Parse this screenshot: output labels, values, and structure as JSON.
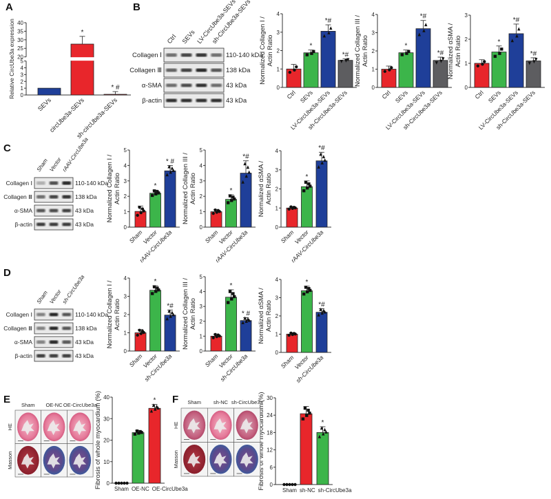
{
  "panels": {
    "A": "A",
    "B": "B",
    "C": "C",
    "D": "D",
    "E": "E",
    "F": "F"
  },
  "colors": {
    "red": "#e8262b",
    "green": "#3cb54a",
    "blue": "#1f3f99",
    "gray": "#5d5d60"
  },
  "blots": {
    "B": {
      "columns": [
        "Ctrl",
        "SEVs",
        "LV-CircUbe3a-SEVs",
        "sh-CircUbe3a-SEVs"
      ],
      "rows": [
        {
          "label": "Collagen Ⅰ",
          "kda": "110-140 kDa"
        },
        {
          "label": "Collagen Ⅲ",
          "kda": "138 kDa"
        },
        {
          "label": "α-SMA",
          "kda": "43 kDa"
        },
        {
          "label": "β-actin",
          "kda": "43 kDa"
        }
      ]
    },
    "C": {
      "columns": [
        "Sham",
        "Vector",
        "rAAV-CircUbe3a"
      ],
      "rows": [
        {
          "label": "Collagen Ⅰ",
          "kda": "110-140 kDa"
        },
        {
          "label": "Collagen Ⅲ",
          "kda": "138 kDa"
        },
        {
          "label": "α-SMA",
          "kda": "43 kDa"
        },
        {
          "label": "β-actin",
          "kda": "43 kDa"
        }
      ]
    },
    "D": {
      "columns": [
        "Sham",
        "Vector",
        "sh-CircUbe3a"
      ],
      "rows": [
        {
          "label": "Collagen Ⅰ",
          "kda": "110-140 kDa"
        },
        {
          "label": "Collagen Ⅲ",
          "kda": "138 kDa"
        },
        {
          "label": "α-SMA",
          "kda": "43 kDa"
        },
        {
          "label": "β-actin",
          "kda": "43 kDa"
        }
      ]
    }
  },
  "histology": {
    "E": {
      "columns": [
        "Sham",
        "OE-NC",
        "OE-CircUbe3a"
      ],
      "rows": [
        "HE",
        "Masson"
      ]
    },
    "F": {
      "columns": [
        "Sham",
        "sh-NC",
        "sh-CircUbe3a"
      ],
      "rows": [
        "HE",
        "Masson"
      ]
    }
  },
  "chart_data": [
    {
      "id": "A",
      "type": "bar",
      "ylabel": [
        "Relative CircUbe3a expression"
      ],
      "categories": [
        "SEVs",
        "circUbe3a-SEVs",
        "sh-circUbe3a-SEVs"
      ],
      "values": [
        1,
        27.5,
        0.1
      ],
      "errors": [
        0,
        4.5,
        0.4
      ],
      "annotations": [
        "",
        "*",
        "* #"
      ],
      "colors": [
        "blue",
        "red",
        "red"
      ],
      "ylim": [
        0,
        40
      ],
      "axis_break": [
        5,
        20
      ],
      "yticks": [
        0,
        1,
        2,
        3,
        4,
        5,
        20,
        25,
        30,
        35,
        40
      ],
      "points": false
    },
    {
      "id": "B1",
      "type": "bar",
      "ylabel": [
        "Normalized Collagen I /",
        "Actin Ratio"
      ],
      "categories": [
        "Ctrl",
        "SEVs",
        "LV-CircUbe3a-SEVs",
        "sh-CircUbe3a-SEVs"
      ],
      "values": [
        1.0,
        1.88,
        3.05,
        1.47
      ],
      "errors": [
        0.25,
        0.15,
        0.35,
        0.08
      ],
      "annotations": [
        "",
        "*",
        "*#",
        "*#"
      ],
      "colors": [
        "red",
        "green",
        "blue",
        "gray"
      ],
      "ylim": [
        0,
        4
      ],
      "yticks": [
        0,
        1,
        2,
        3,
        4
      ],
      "n": 3
    },
    {
      "id": "B2",
      "type": "bar",
      "ylabel": [
        "Normalized Collagen III /",
        "Actin Ratio"
      ],
      "categories": [
        "Ctrl",
        "SEVs",
        "LV-CircUbe3a-SEVs",
        "sh-CircUbe3a-SEVs"
      ],
      "values": [
        1.0,
        1.9,
        3.22,
        1.48
      ],
      "errors": [
        0.17,
        0.15,
        0.45,
        0.18
      ],
      "annotations": [
        "",
        "*",
        "*#",
        "*#"
      ],
      "colors": [
        "red",
        "green",
        "blue",
        "gray"
      ],
      "ylim": [
        0,
        4
      ],
      "yticks": [
        0,
        1,
        2,
        3,
        4
      ],
      "n": 3
    },
    {
      "id": "B3",
      "type": "bar",
      "ylabel": [
        "Normalized αSMA /",
        "Actin Ratio"
      ],
      "categories": [
        "Ctrl",
        "SEVs",
        "LV-CircUbe3a-SEVs",
        "sh-CircUbe3a-SEVs"
      ],
      "values": [
        1.0,
        1.47,
        2.23,
        1.1
      ],
      "errors": [
        0.15,
        0.25,
        0.4,
        0.13
      ],
      "annotations": [
        "",
        "*",
        "*#",
        "*#"
      ],
      "colors": [
        "red",
        "green",
        "blue",
        "gray"
      ],
      "ylim": [
        0,
        3
      ],
      "yticks": [
        0,
        1,
        2,
        3
      ],
      "n": 3
    },
    {
      "id": "C1",
      "type": "bar",
      "ylabel": [
        "Normalized Collagen I /",
        "Actin Ratio"
      ],
      "categories": [
        "Sham",
        "Vector",
        "rAAV-CircUbe3a"
      ],
      "values": [
        1.02,
        2.2,
        3.65
      ],
      "errors": [
        0.35,
        0.2,
        0.35
      ],
      "annotations": [
        "",
        "*",
        "* #"
      ],
      "colors": [
        "red",
        "green",
        "blue"
      ],
      "ylim": [
        0,
        5
      ],
      "yticks": [
        0,
        1,
        2,
        3,
        4,
        5
      ],
      "n": 5
    },
    {
      "id": "C2",
      "type": "bar",
      "ylabel": [
        "Normalized Collagen III /",
        "Actin Ratio"
      ],
      "categories": [
        "Sham",
        "Vector",
        "rAAV-CircUbe3a"
      ],
      "values": [
        1.0,
        1.8,
        3.5
      ],
      "errors": [
        0.15,
        0.3,
        0.8
      ],
      "annotations": [
        "",
        "*",
        "*#"
      ],
      "colors": [
        "red",
        "green",
        "blue"
      ],
      "ylim": [
        0,
        5
      ],
      "yticks": [
        0,
        1,
        2,
        3,
        4,
        5
      ],
      "n": 5
    },
    {
      "id": "C3",
      "type": "bar",
      "ylabel": [
        "Normalized αSMA /",
        "Actin Ratio"
      ],
      "categories": [
        "Sham",
        "Vector",
        "rAAV-CircUbe3a"
      ],
      "values": [
        1.0,
        2.12,
        3.47
      ],
      "errors": [
        0.08,
        0.3,
        0.45
      ],
      "annotations": [
        "",
        "*",
        "*#"
      ],
      "colors": [
        "red",
        "green",
        "blue"
      ],
      "ylim": [
        0,
        4
      ],
      "yticks": [
        0,
        1,
        2,
        3,
        4
      ],
      "n": 5
    },
    {
      "id": "D1",
      "type": "bar",
      "ylabel": [
        "Normalized Collagen I /",
        "Actin Ratio"
      ],
      "categories": [
        "Sham",
        "Vector",
        "sh-CircUbe3a"
      ],
      "values": [
        1.0,
        3.33,
        1.97
      ],
      "errors": [
        0.18,
        0.25,
        0.28
      ],
      "annotations": [
        "",
        "*",
        "*#"
      ],
      "colors": [
        "red",
        "green",
        "blue"
      ],
      "ylim": [
        0,
        4
      ],
      "yticks": [
        0,
        1,
        2,
        3,
        4
      ],
      "n": 5
    },
    {
      "id": "D2",
      "type": "bar",
      "ylabel": [
        "Normalized Collagen III /",
        "Actin Ratio"
      ],
      "categories": [
        "Sham",
        "Vector",
        "sh-CircUbe3a"
      ],
      "values": [
        1.0,
        3.62,
        2.05
      ],
      "errors": [
        0.15,
        0.5,
        0.2
      ],
      "annotations": [
        "",
        "*",
        "* #"
      ],
      "colors": [
        "red",
        "green",
        "blue"
      ],
      "ylim": [
        0,
        5
      ],
      "yticks": [
        0,
        1,
        2,
        3,
        4,
        5
      ],
      "n": 5
    },
    {
      "id": "D3",
      "type": "bar",
      "ylabel": [
        "Normalized αSMA /",
        "Actin Ratio"
      ],
      "categories": [
        "Sham",
        "Vector",
        "sh-CircUbe3a"
      ],
      "values": [
        1.0,
        3.38,
        2.2
      ],
      "errors": [
        0.08,
        0.25,
        0.2
      ],
      "annotations": [
        "",
        "*",
        "*#"
      ],
      "colors": [
        "red",
        "green",
        "blue"
      ],
      "ylim": [
        0,
        4
      ],
      "yticks": [
        0,
        1,
        2,
        3,
        4
      ],
      "n": 5
    },
    {
      "id": "E",
      "type": "bar",
      "ylabel": [
        "Fibrosis of whole myocardium (%)"
      ],
      "categories": [
        "Sham",
        "OE-NC",
        "OE-CircUbe3a"
      ],
      "values": [
        0,
        23.5,
        34.8
      ],
      "errors": [
        0,
        1,
        1.8
      ],
      "annotations": [
        "",
        "",
        "*"
      ],
      "colors": [
        "red",
        "green",
        "red"
      ],
      "ylim": [
        0,
        40
      ],
      "yticks": [
        0,
        10,
        20,
        30,
        40
      ],
      "n": 5
    },
    {
      "id": "F",
      "type": "bar",
      "ylabel": [
        "Fibrosis of whole myocardium (%)"
      ],
      "categories": [
        "Sham",
        "sh-NC",
        "sh-CircUbe3a"
      ],
      "values": [
        0,
        24.5,
        18
      ],
      "errors": [
        0,
        2.5,
        2
      ],
      "annotations": [
        "",
        "",
        "*"
      ],
      "colors": [
        "red",
        "red",
        "green"
      ],
      "ylim": [
        0,
        30
      ],
      "yticks": [
        0,
        6,
        12,
        18,
        24,
        30
      ],
      "n": 5
    }
  ]
}
